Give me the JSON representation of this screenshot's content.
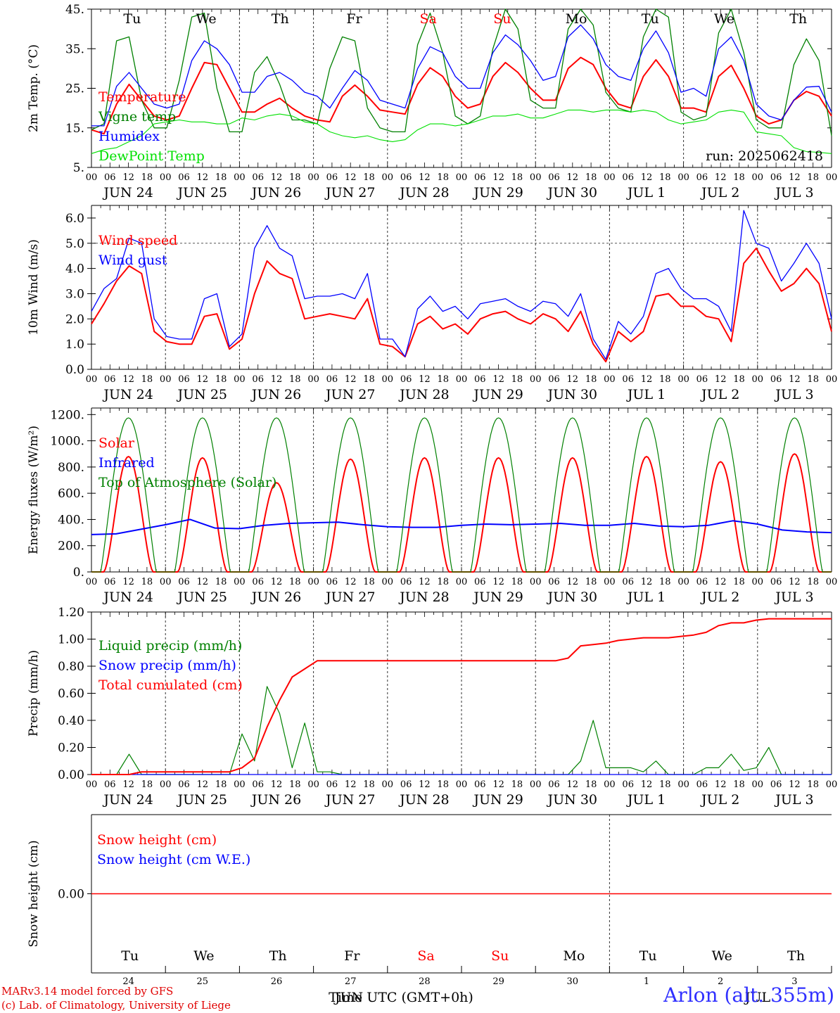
{
  "chart_data": [
    {
      "type": "line",
      "ylabel": "2m Temp. (°C)",
      "ylim": [
        5,
        45
      ],
      "y_ticks": [
        "5.",
        "15.",
        "25.",
        "35.",
        "45."
      ],
      "x_start": "2025-06-24T00:00Z",
      "x_step_hours": 6,
      "x_ticks": [
        "00",
        "06",
        "12",
        "18"
      ],
      "date_labels": [
        "JUN 24",
        "JUN 25",
        "JUN 26",
        "JUN 27",
        "JUN 28",
        "JUN 29",
        "JUN 30",
        "JUL  1",
        "JUL  2",
        "JUL  3"
      ],
      "day_labels": [
        {
          "text": "Tu",
          "color": "#000000"
        },
        {
          "text": "We",
          "color": "#000000"
        },
        {
          "text": "Th",
          "color": "#000000"
        },
        {
          "text": "Fr",
          "color": "#000000"
        },
        {
          "text": "Sa",
          "color": "#ff0000"
        },
        {
          "text": "Su",
          "color": "#ff0000"
        },
        {
          "text": "Mo",
          "color": "#000000"
        },
        {
          "text": "Tu",
          "color": "#000000"
        },
        {
          "text": "We",
          "color": "#000000"
        },
        {
          "text": "Th",
          "color": "#000000"
        }
      ],
      "annotation": "run: 2025062418",
      "series": [
        {
          "name": "Temperature",
          "color": "#ff0000",
          "width": 2,
          "values": [
            14.5,
            13.5,
            21,
            26,
            22,
            18,
            17,
            18,
            25,
            31.5,
            31,
            25,
            19,
            19,
            21,
            22.5,
            20,
            18,
            17,
            16.5,
            23,
            25.8,
            23,
            19.5,
            19,
            18.5,
            26,
            30.2,
            28,
            23,
            20,
            21,
            28,
            31.5,
            29,
            25,
            22,
            22,
            30,
            32.8,
            31,
            25,
            21,
            20,
            28,
            32.2,
            28,
            20,
            20,
            19,
            28,
            30.8,
            25,
            18,
            16,
            17,
            22,
            24.2,
            23,
            18
          ]
        },
        {
          "name": "Vigne temp",
          "color": "#008000",
          "width": 1.3,
          "values": [
            14.5,
            16,
            37,
            38,
            22,
            15,
            15,
            27,
            43,
            44,
            25,
            14,
            14,
            29,
            33,
            26,
            17,
            17,
            16,
            30,
            38,
            37,
            20,
            15,
            14,
            14,
            36,
            44,
            34,
            18,
            16,
            18,
            35,
            45,
            40,
            22,
            20,
            20,
            40,
            45,
            41,
            24,
            20,
            19,
            38,
            45,
            43,
            19,
            17,
            18,
            39,
            45,
            34,
            17,
            15,
            15,
            31,
            37.5,
            32,
            13
          ]
        },
        {
          "name": "Humidex",
          "color": "#0000ff",
          "width": 1.3,
          "values": [
            15.5,
            15.5,
            25.5,
            29,
            25,
            21,
            20,
            21,
            32,
            37,
            35,
            31,
            24,
            24,
            28,
            29,
            27,
            24,
            23,
            20,
            25,
            29.5,
            27,
            22,
            21,
            20,
            30,
            35.5,
            34,
            28,
            25,
            25,
            34,
            38.5,
            36,
            32,
            27,
            28,
            38,
            41,
            37.5,
            31,
            28,
            27,
            35,
            39.5,
            34,
            24,
            25,
            23,
            35,
            38,
            32,
            21,
            18,
            17,
            22,
            25.3,
            25.5,
            19
          ]
        },
        {
          "name": "DewPoint Temp",
          "color": "#00e000",
          "width": 1.1,
          "values": [
            8.5,
            9.5,
            10,
            11.5,
            13,
            16,
            16.5,
            17,
            16.5,
            16.5,
            16,
            16,
            17.5,
            17,
            18,
            18.5,
            18,
            16.5,
            16,
            14,
            13,
            12.5,
            13,
            12,
            11.5,
            12,
            14.5,
            16,
            16,
            15.5,
            16,
            17,
            18,
            18,
            18.5,
            17.5,
            17.5,
            18.5,
            19.5,
            19.5,
            19,
            19.5,
            19.5,
            19,
            19.5,
            19,
            17,
            16,
            16.5,
            17,
            19,
            19.5,
            19,
            14,
            13.5,
            13,
            10,
            9,
            8.8,
            8.5
          ]
        }
      ],
      "legend_placement": "left"
    },
    {
      "type": "line",
      "ylabel": "10m Wind (m/s)",
      "ylim": [
        0,
        6.5
      ],
      "y_ticks": [
        "0.0",
        "1.0",
        "2.0",
        "3.0",
        "4.0",
        "5.0",
        "6.0"
      ],
      "reference_line": 5.0,
      "x_start": "2025-06-24T00:00Z",
      "x_step_hours": 6,
      "series": [
        {
          "name": "Wind speed",
          "color": "#ff0000",
          "width": 2,
          "values": [
            1.8,
            2.6,
            3.5,
            4.1,
            3.8,
            1.5,
            1.1,
            1.0,
            1.0,
            2.1,
            2.2,
            0.8,
            1.2,
            3.0,
            4.3,
            3.8,
            3.6,
            2.0,
            2.1,
            2.2,
            2.1,
            2.0,
            2.8,
            1.0,
            0.9,
            0.5,
            1.8,
            2.1,
            1.6,
            1.8,
            1.4,
            2.0,
            2.2,
            2.3,
            2.0,
            1.8,
            2.2,
            2.0,
            1.5,
            2.3,
            1.0,
            0.3,
            1.5,
            1.1,
            1.5,
            2.9,
            3.0,
            2.5,
            2.5,
            2.1,
            2.0,
            1.1,
            4.2,
            4.8,
            3.9,
            3.1,
            3.4,
            4.0,
            3.4,
            1.5
          ]
        },
        {
          "name": "Wind gust",
          "color": "#0000ff",
          "width": 1.3,
          "values": [
            2.3,
            3.2,
            3.6,
            5.2,
            5.0,
            2.0,
            1.3,
            1.2,
            1.2,
            2.8,
            3.0,
            0.9,
            1.4,
            4.8,
            5.7,
            4.8,
            4.5,
            2.8,
            2.9,
            2.9,
            3.0,
            2.8,
            3.8,
            1.2,
            1.2,
            0.5,
            2.4,
            2.9,
            2.3,
            2.5,
            2.0,
            2.6,
            2.7,
            2.8,
            2.5,
            2.3,
            2.7,
            2.6,
            2.1,
            3.0,
            1.2,
            0.4,
            1.9,
            1.4,
            2.1,
            3.8,
            4.0,
            3.2,
            2.8,
            2.8,
            2.5,
            1.5,
            6.3,
            5.0,
            4.8,
            3.5,
            4.2,
            5.0,
            4.2,
            2.0
          ]
        }
      ],
      "legend_placement": "left"
    },
    {
      "type": "line",
      "ylabel": "Energy fluxes (W/m²)",
      "ylim": [
        0,
        1250
      ],
      "y_ticks": [
        "0.",
        "200.",
        "400.",
        "600.",
        "800.",
        "1000.",
        "1200."
      ],
      "x_start": "2025-06-24T00:00Z",
      "x_step_hours": 1,
      "daily_toa_peak": 1175,
      "toa_daylight_hours": [
        3,
        21
      ],
      "solar_daylight_hours": [
        4,
        20
      ],
      "solar_daily_peaks": [
        880,
        870,
        680,
        860,
        870,
        870,
        870,
        880,
        840,
        900
      ],
      "series": [
        {
          "name": "Solar",
          "color": "#ff0000",
          "width": 2
        },
        {
          "name": "Infrared",
          "color": "#0000ff",
          "width": 2,
          "values": [
            285,
            290,
            325,
            360,
            400,
            335,
            330,
            355,
            370,
            375,
            380,
            360,
            345,
            340,
            340,
            355,
            365,
            360,
            365,
            370,
            355,
            355,
            370,
            350,
            345,
            355,
            390,
            365,
            320,
            305,
            300
          ]
        },
        {
          "name": "Top of Atmosphere (Solar)",
          "color": "#008000",
          "width": 1.2
        }
      ],
      "legend_placement": "left"
    },
    {
      "type": "line",
      "ylabel": "Precip (mm/h)",
      "ylim": [
        0,
        1.2
      ],
      "y_ticks": [
        "0.00",
        "0.20",
        "0.40",
        "0.60",
        "0.80",
        "1.00",
        "1.20"
      ],
      "x_start": "2025-06-24T00:00Z",
      "x_step_hours": 6,
      "series": [
        {
          "name": "Liquid precip (mm/h)",
          "color": "#008000",
          "width": 1.2,
          "values": [
            0,
            0,
            0,
            0.15,
            0,
            0,
            0,
            0,
            0,
            0,
            0,
            0,
            0.3,
            0.1,
            0.65,
            0.45,
            0.05,
            0.38,
            0.02,
            0.02,
            0,
            0,
            0,
            0,
            0,
            0,
            0,
            0,
            0,
            0,
            0,
            0,
            0,
            0,
            0,
            0,
            0,
            0,
            0,
            0.1,
            0.4,
            0.05,
            0.05,
            0.05,
            0.02,
            0.1,
            0,
            0,
            0,
            0.05,
            0.05,
            0.15,
            0.03,
            0.05,
            0.2,
            0,
            0,
            0,
            0,
            0
          ]
        },
        {
          "name": "Snow precip (mm/h)",
          "color": "#0000ff",
          "width": 1.2,
          "values": [
            0,
            0,
            0,
            0,
            0,
            0,
            0,
            0,
            0,
            0,
            0,
            0,
            0,
            0,
            0,
            0,
            0,
            0,
            0,
            0,
            0,
            0,
            0,
            0,
            0,
            0,
            0,
            0,
            0,
            0,
            0,
            0,
            0,
            0,
            0,
            0,
            0,
            0,
            0,
            0,
            0,
            0,
            0,
            0,
            0,
            0,
            0,
            0,
            0,
            0,
            0,
            0,
            0,
            0,
            0,
            0,
            0,
            0,
            0,
            0
          ]
        },
        {
          "name": "Total cumulated (cm)",
          "color": "#ff0000",
          "width": 2,
          "values": [
            0,
            0,
            0,
            0,
            0.02,
            0.02,
            0.02,
            0.02,
            0.02,
            0.02,
            0.02,
            0.02,
            0.05,
            0.12,
            0.35,
            0.55,
            0.72,
            0.78,
            0.84,
            0.84,
            0.84,
            0.84,
            0.84,
            0.84,
            0.84,
            0.84,
            0.84,
            0.84,
            0.84,
            0.84,
            0.84,
            0.84,
            0.84,
            0.84,
            0.84,
            0.84,
            0.84,
            0.84,
            0.86,
            0.95,
            0.96,
            0.97,
            0.99,
            1.0,
            1.01,
            1.01,
            1.01,
            1.02,
            1.03,
            1.05,
            1.1,
            1.12,
            1.12,
            1.14,
            1.15,
            1.15,
            1.15,
            1.15,
            1.15,
            1.15
          ]
        }
      ],
      "legend_placement": "left"
    },
    {
      "type": "line",
      "ylabel": "Snow height (cm)",
      "ylim": [
        -1,
        1
      ],
      "y_ticks": [
        "0.00"
      ],
      "series": [
        {
          "name": "Snow height (cm)",
          "color": "#ff0000",
          "width": 1.5,
          "values": [
            0,
            0
          ]
        },
        {
          "name": "Snow height (cm W.E.)",
          "color": "#0000ff",
          "width": 1.5,
          "values": []
        }
      ],
      "day_numbers": [
        "24",
        "25",
        "26",
        "27",
        "28",
        "29",
        "30",
        "1",
        "2",
        "3"
      ],
      "xlabel": "Time UTC (GMT+0h)",
      "month_overlay": "JUN",
      "month_overlay_2": "JUL",
      "legend_placement": "left"
    }
  ],
  "footer": {
    "credit_line1": "MARv3.14 model forced by GFS",
    "credit_line2": "(c) Lab. of Climatology, University of Liege",
    "station": "Arlon (alt. 355m)"
  }
}
